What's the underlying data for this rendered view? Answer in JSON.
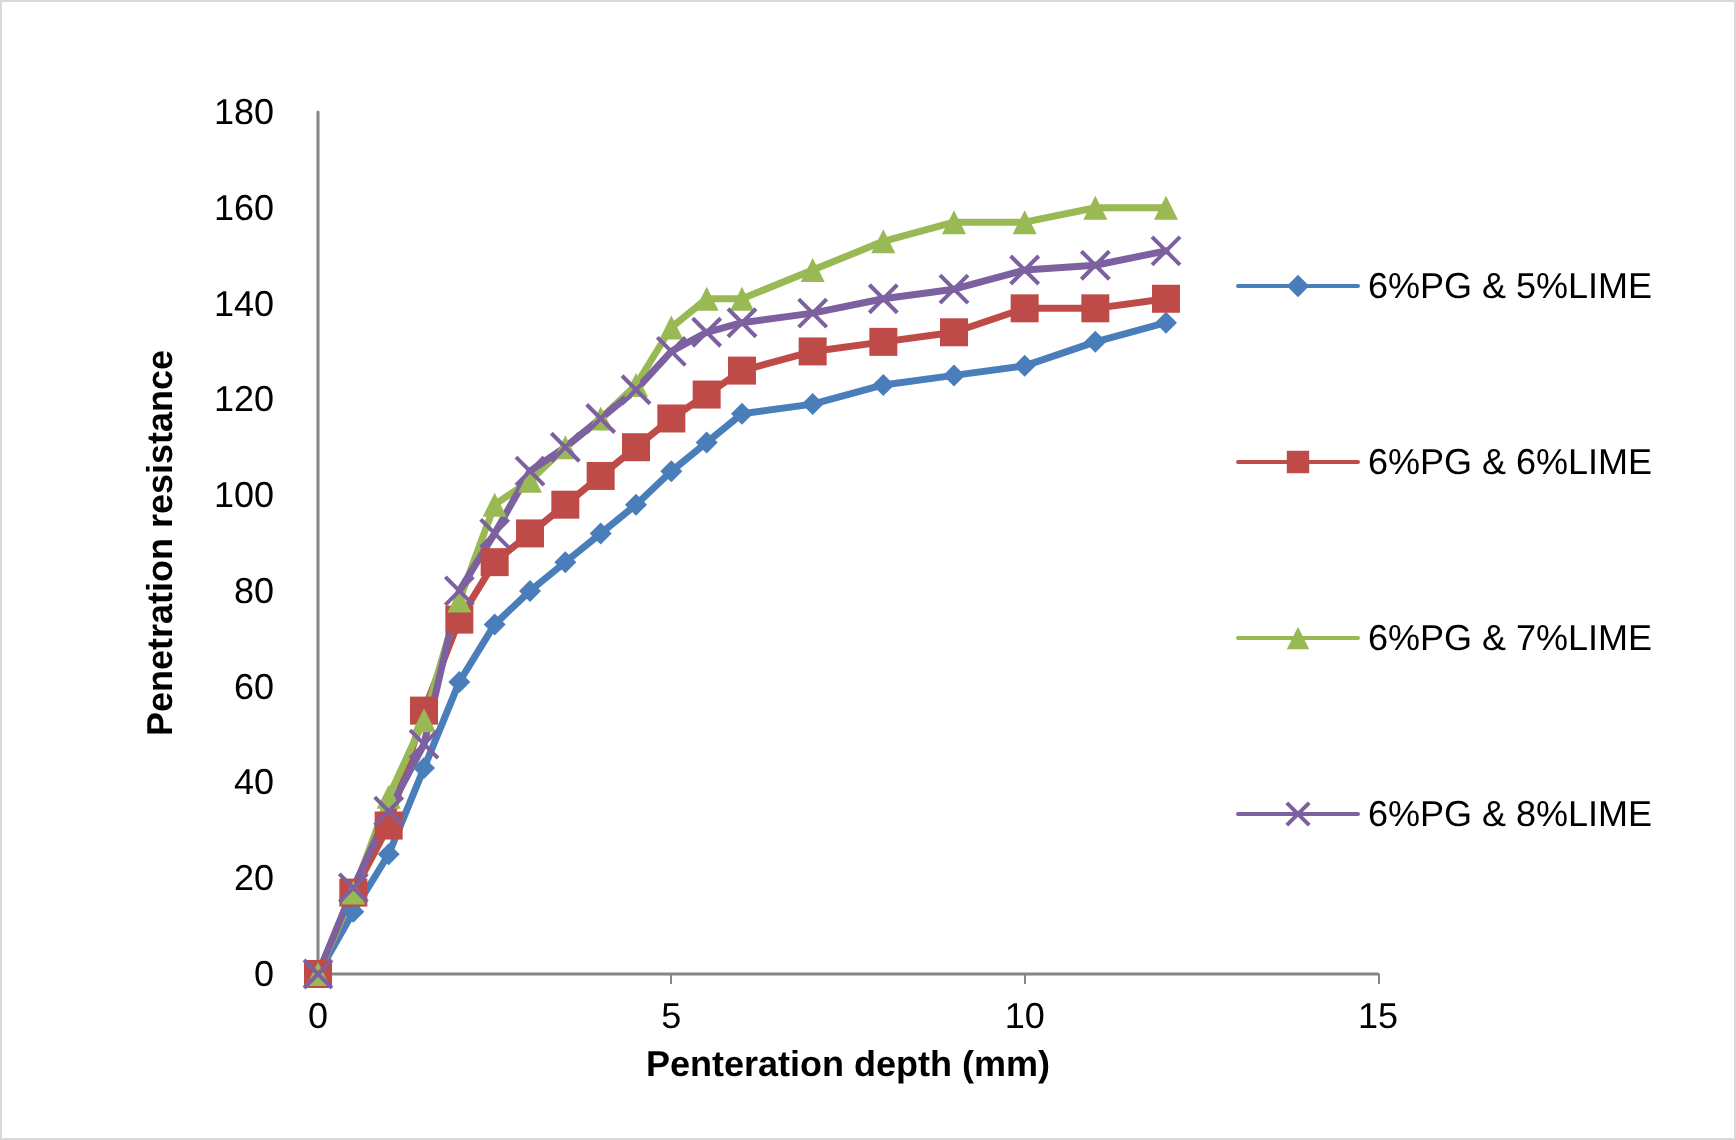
{
  "chart_data": {
    "type": "line",
    "xlabel": "Penteration depth (mm)",
    "ylabel": "Penetration resistance",
    "xlim": [
      0,
      15
    ],
    "xticks": [
      0,
      5,
      10,
      15
    ],
    "ylim": [
      0,
      180
    ],
    "yticks": [
      0,
      20,
      40,
      60,
      80,
      100,
      120,
      140,
      160,
      180
    ],
    "grid": false,
    "legend": "right",
    "line_style": "solid",
    "x": [
      0,
      0.5,
      1,
      1.5,
      2,
      2.5,
      3,
      3.5,
      4,
      4.5,
      5,
      5.5,
      6,
      7,
      8,
      9,
      10,
      11,
      12
    ],
    "series": [
      {
        "name": "6%PG & 5%LIME",
        "color": "#4a7ebb",
        "marker": "diamond",
        "values": [
          0,
          13,
          25,
          43,
          61,
          73,
          80,
          86,
          92,
          98,
          105,
          111,
          117,
          119,
          123,
          125,
          127,
          132,
          136
        ]
      },
      {
        "name": "6%PG & 6%LIME",
        "color": "#be4b48",
        "marker": "square",
        "values": [
          0,
          17,
          31,
          55,
          74,
          86,
          92,
          98,
          104,
          110,
          116,
          121,
          126,
          130,
          132,
          134,
          139,
          139,
          141
        ]
      },
      {
        "name": "6%PG & 7%LIME",
        "color": "#98b954",
        "marker": "triangle",
        "values": [
          0,
          17,
          37,
          53,
          78,
          98,
          103,
          110,
          116,
          123,
          135,
          141,
          141,
          147,
          153,
          157,
          157,
          160,
          160
        ]
      },
      {
        "name": "6%PG & 8%LIME",
        "color": "#7d60a0",
        "marker": "cross",
        "values": [
          0,
          18,
          34,
          48,
          80,
          92,
          105,
          110,
          116,
          122,
          130,
          134,
          136,
          138,
          141,
          143,
          147,
          148,
          151
        ]
      }
    ]
  }
}
